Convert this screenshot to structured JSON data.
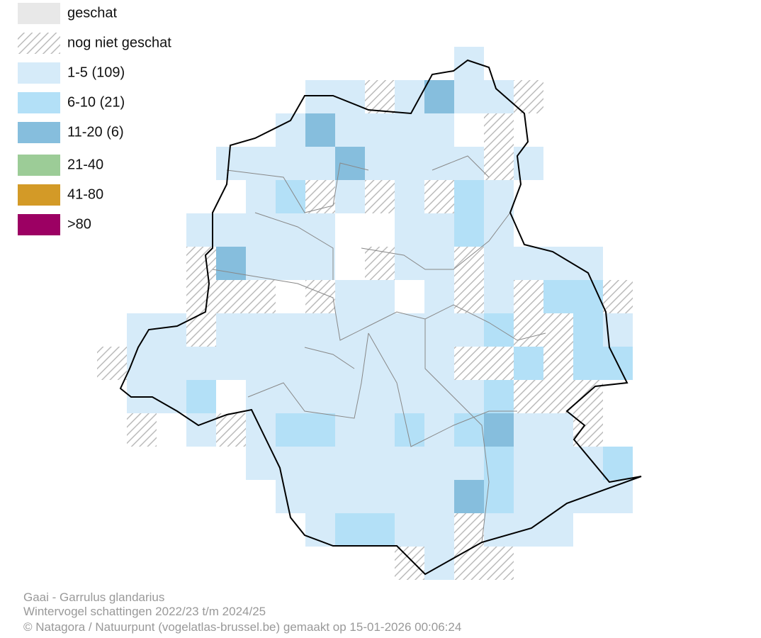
{
  "legend": [
    {
      "label": "geschat",
      "color": "#e8e8e8"
    },
    {
      "label": "nog niet geschat"
    },
    {
      "label": "1-5 (109)",
      "color": "#d6ebf9"
    },
    {
      "label": "6-10 (21)",
      "color": "#b3e0f7"
    },
    {
      "label": "11-20 (6)",
      "color": "#86bedd"
    },
    {
      "label": "21-40",
      "color": "#9ccc97"
    },
    {
      "label": "41-80",
      "color": "#d39a27"
    },
    {
      "label": ">80",
      "color": "#9c0063"
    }
  ],
  "footer": [
    "Gaai - Garrulus glandarius",
    "Wintervogel schattingen 2022/23 t/m 2024/25",
    "© Natagora / Natuurpunt (vogelatlas-brussel.be) gemaakt op 15-01-2026 00:06:24"
  ]
}
